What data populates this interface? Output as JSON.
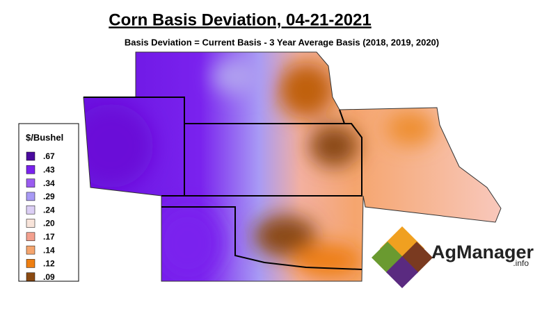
{
  "header": {
    "title": "Corn Basis Deviation, 04-21-2021",
    "subtitle": "Basis Deviation = Current Basis - 3 Year Average Basis (2018, 2019, 2020)"
  },
  "legend": {
    "title": "$/Bushel",
    "items": [
      {
        "label": ".67",
        "color": "#4a0a9e"
      },
      {
        "label": ".43",
        "color": "#7a22ee"
      },
      {
        "label": ".34",
        "color": "#9a5cf0"
      },
      {
        "label": ".29",
        "color": "#a89af5"
      },
      {
        "label": ".24",
        "color": "#dccff5"
      },
      {
        "label": ".20",
        "color": "#f8e4da"
      },
      {
        "label": ".17",
        "color": "#f3a08e"
      },
      {
        "label": ".14",
        "color": "#f5a56e"
      },
      {
        "label": ".12",
        "color": "#ee7f12"
      },
      {
        "label": ".09",
        "color": "#8a4a12"
      }
    ]
  },
  "logo": {
    "name": "AgManager",
    "suffix": ".info"
  }
}
